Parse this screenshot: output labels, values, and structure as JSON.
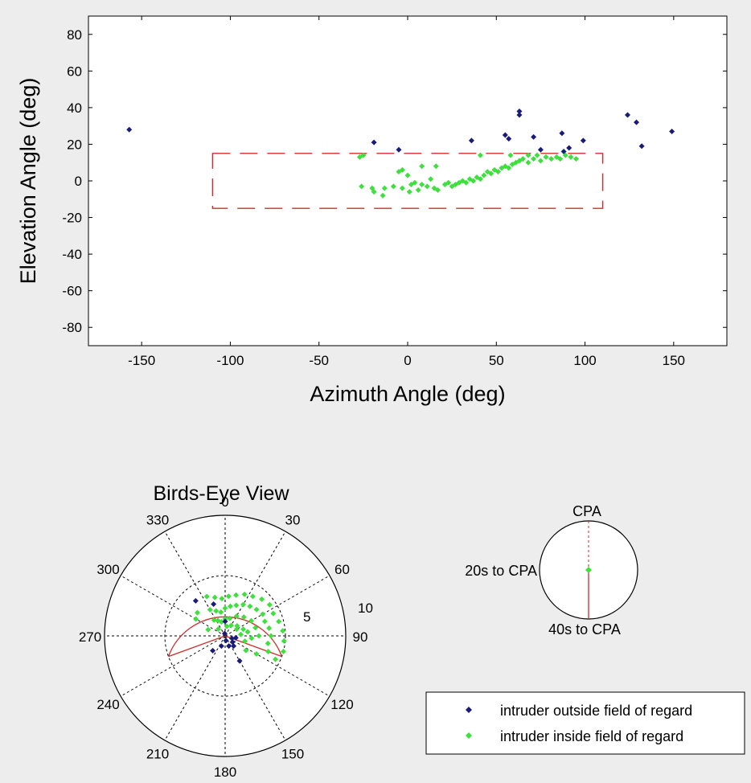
{
  "chart_data": [
    {
      "type": "scatter",
      "xlabel": "Azimuth Angle (deg)",
      "ylabel": "Elevation Angle (deg)",
      "xlim": [
        -180,
        180
      ],
      "ylim": [
        -90,
        90
      ],
      "xticks": [
        -150,
        -100,
        -50,
        0,
        50,
        100,
        150
      ],
      "yticks": [
        -80,
        -60,
        -40,
        -20,
        0,
        20,
        40,
        60,
        80
      ],
      "field_of_regard_box": {
        "azimuth": [
          -110,
          110
        ],
        "elevation": [
          -15,
          15
        ],
        "color": "#d42a2a",
        "style": "dashed"
      },
      "series": [
        {
          "name": "intruder outside field of regard",
          "color": "#1a1a7a",
          "points": [
            [
              -157,
              28
            ],
            [
              -19,
              21
            ],
            [
              -5,
              17
            ],
            [
              36,
              22
            ],
            [
              55,
              25
            ],
            [
              57,
              23
            ],
            [
              63,
              38
            ],
            [
              63,
              36
            ],
            [
              71,
              24
            ],
            [
              75,
              17
            ],
            [
              87,
              26
            ],
            [
              88,
              16
            ],
            [
              91,
              18
            ],
            [
              99,
              22
            ],
            [
              124,
              36
            ],
            [
              129,
              32
            ],
            [
              132,
              19
            ],
            [
              149,
              27
            ]
          ]
        },
        {
          "name": "intruder inside field of regard",
          "color": "#3ee03e",
          "points": [
            [
              -25,
              14
            ],
            [
              -27,
              13
            ],
            [
              -26,
              -3
            ],
            [
              -20,
              -4
            ],
            [
              -19,
              -6
            ],
            [
              -14,
              -8
            ],
            [
              -13,
              -4
            ],
            [
              -8,
              -3
            ],
            [
              -5,
              5
            ],
            [
              -3,
              6
            ],
            [
              -3,
              -4
            ],
            [
              1,
              -6
            ],
            [
              2,
              -2
            ],
            [
              0,
              3
            ],
            [
              4,
              -1
            ],
            [
              6,
              -5
            ],
            [
              8,
              -2
            ],
            [
              11,
              -3
            ],
            [
              13,
              1
            ],
            [
              15,
              -4
            ],
            [
              17,
              -5
            ],
            [
              21,
              -2
            ],
            [
              23,
              -1
            ],
            [
              25,
              -3
            ],
            [
              27,
              -2
            ],
            [
              29,
              -1
            ],
            [
              31,
              0
            ],
            [
              33,
              -1
            ],
            [
              35,
              1
            ],
            [
              37,
              0
            ],
            [
              39,
              2
            ],
            [
              41,
              1
            ],
            [
              43,
              3
            ],
            [
              45,
              5
            ],
            [
              47,
              4
            ],
            [
              49,
              6
            ],
            [
              51,
              5
            ],
            [
              53,
              7
            ],
            [
              55,
              8
            ],
            [
              57,
              7
            ],
            [
              59,
              9
            ],
            [
              61,
              10
            ],
            [
              63,
              11
            ],
            [
              65,
              12
            ],
            [
              68,
              10
            ],
            [
              71,
              12
            ],
            [
              73,
              14
            ],
            [
              75,
              11
            ],
            [
              78,
              13
            ],
            [
              81,
              12
            ],
            [
              84,
              13
            ],
            [
              86,
              12
            ],
            [
              89,
              14
            ],
            [
              92,
              13
            ],
            [
              95,
              12
            ],
            [
              41,
              14
            ],
            [
              58,
              14
            ],
            [
              68,
              14
            ],
            [
              16,
              8
            ],
            [
              8,
              8
            ]
          ]
        }
      ]
    },
    {
      "type": "scatter",
      "subtype": "polar",
      "title": "Birds-Eye View",
      "angle_labels": [
        {
          "deg": 0,
          "label": "0"
        },
        {
          "deg": 30,
          "label": "30"
        },
        {
          "deg": 60,
          "label": "60"
        },
        {
          "deg": 90,
          "label": "90"
        },
        {
          "deg": 120,
          "label": "120"
        },
        {
          "deg": 150,
          "label": "150"
        },
        {
          "deg": 180,
          "label": "180"
        },
        {
          "deg": 210,
          "label": "210"
        },
        {
          "deg": 240,
          "label": "240"
        },
        {
          "deg": 270,
          "label": "270"
        },
        {
          "deg": 300,
          "label": "300"
        },
        {
          "deg": 330,
          "label": "330"
        }
      ],
      "radius_labels": [
        "5",
        "10"
      ],
      "rmax": 10,
      "field_of_regard_arc": {
        "radius": 5,
        "from_deg": -110,
        "to_deg": 110,
        "color": "#d42a2a"
      },
      "series": [
        {
          "name": "intruder outside field of regard",
          "color": "#1a1a7a",
          "points": [
            [
              -40,
              3.8
            ],
            [
              -20,
              2.8
            ],
            [
              150,
              2.4
            ],
            [
              160,
              0.9
            ],
            [
              170,
              0.4
            ],
            [
              200,
              0.9
            ],
            [
              220,
              1.6
            ],
            [
              140,
              1.1
            ],
            [
              130,
              0.8
            ],
            [
              110,
              0.6
            ],
            [
              100,
              0.9
            ],
            [
              -10,
              0.2
            ],
            [
              0,
              1.2
            ]
          ]
        },
        {
          "name": "intruder inside field of regard",
          "color": "#3ee03e",
          "points": [
            [
              -25,
              3.6
            ],
            [
              -15,
              3.3
            ],
            [
              -5,
              3.1
            ],
            [
              5,
              3.3
            ],
            [
              15,
              3.5
            ],
            [
              25,
              3.8
            ],
            [
              35,
              4.0
            ],
            [
              45,
              4.3
            ],
            [
              55,
              4.5
            ],
            [
              65,
              4.4
            ],
            [
              75,
              4.6
            ],
            [
              85,
              4.8
            ],
            [
              95,
              4.9
            ],
            [
              105,
              5.0
            ],
            [
              115,
              4.6
            ],
            [
              -30,
              2.5
            ],
            [
              -20,
              2.2
            ],
            [
              -10,
              2.0
            ],
            [
              0,
              2.3
            ],
            [
              10,
              2.5
            ],
            [
              20,
              2.7
            ],
            [
              30,
              3.0
            ],
            [
              40,
              3.2
            ],
            [
              50,
              3.4
            ],
            [
              60,
              3.6
            ],
            [
              70,
              3.5
            ],
            [
              80,
              3.7
            ],
            [
              90,
              3.8
            ],
            [
              100,
              3.6
            ],
            [
              110,
              3.8
            ],
            [
              -35,
              1.6
            ],
            [
              -25,
              1.4
            ],
            [
              -15,
              1.2
            ],
            [
              0,
              1.4
            ],
            [
              15,
              1.5
            ],
            [
              30,
              1.9
            ],
            [
              45,
              2.2
            ],
            [
              60,
              2.5
            ],
            [
              75,
              2.6
            ],
            [
              90,
              2.8
            ],
            [
              -45,
              0.8
            ],
            [
              10,
              0.8
            ],
            [
              30,
              1.0
            ],
            [
              50,
              1.3
            ],
            [
              70,
              1.6
            ],
            [
              80,
              1.9
            ],
            [
              95,
              2.2
            ],
            [
              120,
              3.0
            ],
            [
              -60,
              2.8
            ],
            [
              -50,
              3.0
            ],
            [
              60,
              1.1
            ],
            [
              85,
              1.3
            ],
            [
              105,
              1.7
            ],
            [
              125,
              2.1
            ],
            [
              -70,
              1.5
            ]
          ]
        }
      ]
    },
    {
      "type": "diagram",
      "subtype": "cpa-timeline",
      "labels": {
        "top": "CPA",
        "left": "20s to CPA",
        "bottom": "40s to CPA"
      },
      "line_color": "#d42a2a",
      "marker_color": "#3ee03e"
    }
  ],
  "legend": {
    "items": [
      {
        "label": "intruder outside field of regard",
        "color": "#1a1a7a"
      },
      {
        "label": "intruder inside field of regard",
        "color": "#3ee03e"
      }
    ]
  }
}
